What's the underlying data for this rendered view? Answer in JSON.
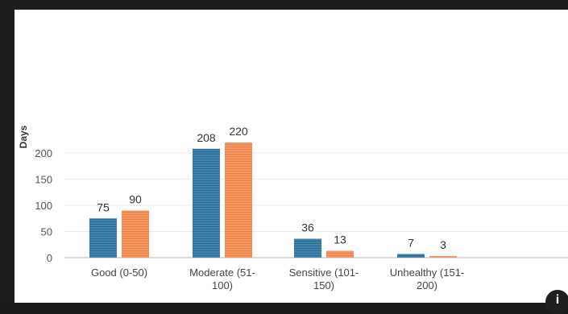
{
  "chart_data": {
    "type": "bar",
    "title": "",
    "xlabel": "",
    "ylabel": "Days",
    "ylim": [
      0,
      220
    ],
    "yticks": [
      0,
      50,
      100,
      150,
      200
    ],
    "grid": true,
    "categories": [
      [
        "Good (0-50)"
      ],
      [
        "Moderate (51-",
        "100)"
      ],
      [
        "Sensitive (101-",
        "150)"
      ],
      [
        "Unhealthy (151-",
        "200)"
      ]
    ],
    "series": [
      {
        "color": "#3a7ca5",
        "values": [
          75,
          208,
          36,
          7
        ]
      },
      {
        "color": "#f28e5c",
        "values": [
          90,
          220,
          13,
          3
        ]
      }
    ]
  },
  "info": {
    "icon": "info-icon",
    "symbol": "i"
  }
}
